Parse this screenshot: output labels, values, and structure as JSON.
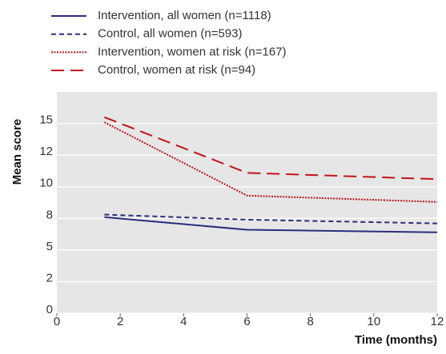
{
  "chart_data": {
    "type": "line",
    "x_label": "Time (months)",
    "y_label": "Mean score",
    "x": [
      1.5,
      6,
      12
    ],
    "series": [
      {
        "name": "Intervention, all women (n=1118)",
        "color": "#2b2d7c",
        "dash": "solid",
        "values": [
          7.6,
          6.6,
          6.4
        ]
      },
      {
        "name": "Control, all women (n=593)",
        "color": "#2b2d7c",
        "dash": "dashed",
        "values": [
          7.8,
          7.4,
          7.1
        ]
      },
      {
        "name": "Intervention, women at risk (n=167)",
        "color": "#c0141b",
        "dash": "dotted",
        "values": [
          15.1,
          9.3,
          8.8
        ]
      },
      {
        "name": "Control, women at risk (n=94)",
        "color": "#c0141b",
        "dash": "longdash",
        "values": [
          15.5,
          11.1,
          10.6
        ]
      }
    ],
    "xlim": [
      0,
      12
    ],
    "xticks": [
      0,
      2,
      4,
      6,
      8,
      10,
      12
    ],
    "ylim": [
      0,
      17.5
    ],
    "yticks": [
      0,
      {
        "value": 2.5,
        "label": "2"
      },
      5,
      {
        "value": 7.5,
        "label": "8"
      },
      10,
      {
        "value": 12.5,
        "label": "12"
      },
      15
    ],
    "grid": true
  }
}
